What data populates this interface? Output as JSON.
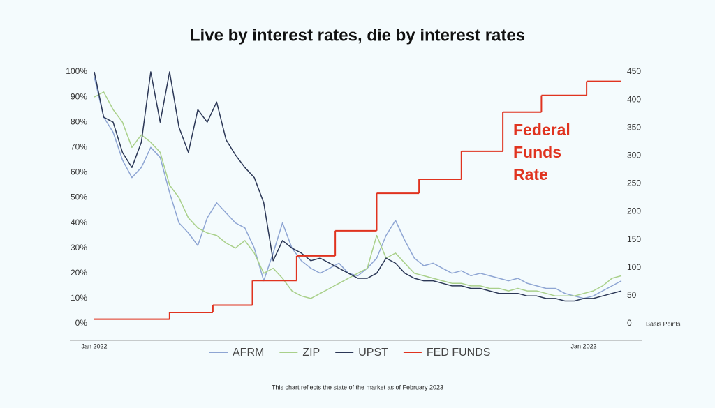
{
  "chart_data": {
    "type": "line",
    "title": "Live by interest rates, die by interest rates",
    "footnote": "This chart reflects the state of the market as of February 2023",
    "annotation": [
      "Federal",
      "Funds",
      "Rate"
    ],
    "y2_label": "Basis Points",
    "x": [
      0,
      1,
      2,
      3,
      4,
      5,
      6,
      7,
      8,
      9,
      10,
      11,
      12,
      13,
      14,
      15,
      16,
      17,
      18,
      19,
      20,
      21,
      22,
      23,
      24,
      25,
      26,
      27,
      28,
      29,
      30,
      31,
      32,
      33,
      34,
      35,
      36,
      37,
      38,
      39,
      40,
      41,
      42,
      43,
      44,
      45,
      46,
      47,
      48,
      49,
      50,
      51,
      52,
      53,
      54,
      55,
      56
    ],
    "xlim": [
      0,
      56
    ],
    "xticks": [
      {
        "value": 0,
        "label": "Jan 2022"
      },
      {
        "value": 52,
        "label": "Jan 2023"
      }
    ],
    "ylim": [
      0,
      100
    ],
    "yticks": [
      {
        "value": 0,
        "label": "0%"
      },
      {
        "value": 10,
        "label": "10%"
      },
      {
        "value": 20,
        "label": "20%"
      },
      {
        "value": 30,
        "label": "30%"
      },
      {
        "value": 40,
        "label": "40%"
      },
      {
        "value": 50,
        "label": "50%"
      },
      {
        "value": 60,
        "label": "60%"
      },
      {
        "value": 70,
        "label": "70%"
      },
      {
        "value": 80,
        "label": "80%"
      },
      {
        "value": 90,
        "label": "90%"
      },
      {
        "value": 100,
        "label": "100%"
      }
    ],
    "y2lim": [
      0,
      450
    ],
    "y2ticks": [
      0,
      50,
      100,
      150,
      200,
      250,
      300,
      350,
      400,
      450
    ],
    "grid": false,
    "series": [
      {
        "name": "AFRM",
        "color": "#8ea5d3",
        "values": [
          98,
          82,
          76,
          65,
          58,
          62,
          70,
          66,
          52,
          40,
          36,
          31,
          42,
          48,
          44,
          40,
          38,
          30,
          17,
          28,
          40,
          30,
          25,
          22,
          20,
          22,
          24,
          20,
          19,
          22,
          26,
          35,
          41,
          33,
          26,
          23,
          24,
          22,
          20,
          21,
          19,
          20,
          19,
          18,
          17,
          18,
          16,
          15,
          14,
          14,
          12,
          11,
          10,
          11,
          13,
          15,
          17
        ]
      },
      {
        "name": "ZIP",
        "color": "#a9d08a",
        "values": [
          90,
          92,
          85,
          80,
          70,
          75,
          72,
          68,
          55,
          50,
          42,
          38,
          36,
          35,
          32,
          30,
          33,
          28,
          20,
          22,
          18,
          13,
          11,
          10,
          12,
          14,
          16,
          18,
          20,
          22,
          35,
          26,
          28,
          24,
          20,
          19,
          18,
          17,
          16,
          16,
          15,
          15,
          14,
          14,
          13,
          14,
          13,
          13,
          12,
          11,
          11,
          11,
          12,
          13,
          15,
          18,
          19
        ]
      },
      {
        "name": "UPST",
        "color": "#2b3756",
        "values": [
          100,
          82,
          80,
          68,
          62,
          72,
          100,
          80,
          100,
          78,
          68,
          85,
          80,
          88,
          73,
          67,
          62,
          58,
          48,
          25,
          33,
          30,
          28,
          25,
          26,
          24,
          22,
          20,
          18,
          18,
          20,
          26,
          24,
          20,
          18,
          17,
          17,
          16,
          15,
          15,
          14,
          14,
          13,
          12,
          12,
          12,
          11,
          11,
          10,
          10,
          9,
          9,
          10,
          10,
          11,
          12,
          13
        ]
      },
      {
        "name": "FED FUNDS",
        "color": "#e0331f",
        "axis": "y2",
        "step": "post",
        "x": [
          0,
          8,
          12.6,
          16.8,
          21.5,
          25.6,
          30,
          34.5,
          39,
          43.4,
          47.5,
          52.3
        ],
        "values": [
          8,
          20,
          33,
          77,
          121,
          166,
          233,
          258,
          308,
          378,
          408,
          433
        ]
      }
    ]
  }
}
